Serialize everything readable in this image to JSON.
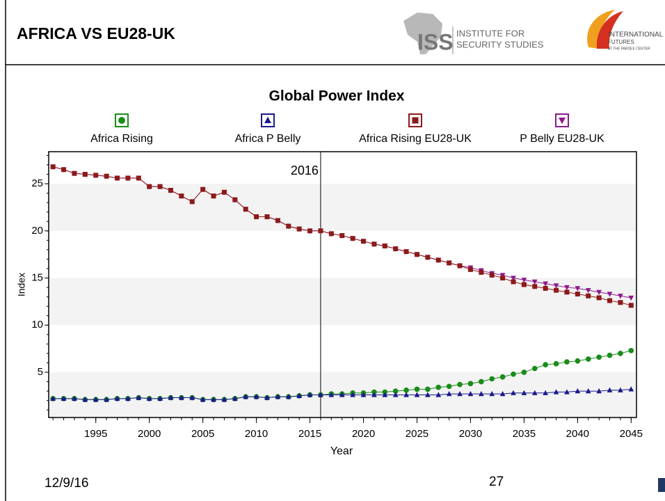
{
  "header": {
    "title": "AFRICA VS EU28-UK"
  },
  "logos": {
    "iss": {
      "abbr": "ISS",
      "line1": "INSTITUTE FOR",
      "line2": "SECURITY STUDIES"
    },
    "ifs": {
      "line1": "INTERNATIONAL",
      "line2": "FUTURES",
      "line3": "AT THE PARDEE CENTER"
    }
  },
  "footer": {
    "date": "12/9/16",
    "page": "27"
  },
  "chart_data": {
    "type": "line",
    "title": "Global Power Index",
    "x_label": "Year",
    "y_label": "Index",
    "x": [
      1991,
      1992,
      1993,
      1994,
      1995,
      1996,
      1997,
      1998,
      1999,
      2000,
      2001,
      2002,
      2003,
      2004,
      2005,
      2006,
      2007,
      2008,
      2009,
      2010,
      2011,
      2012,
      2013,
      2014,
      2015,
      2016,
      2017,
      2018,
      2019,
      2020,
      2021,
      2022,
      2023,
      2024,
      2025,
      2026,
      2027,
      2028,
      2029,
      2030,
      2031,
      2032,
      2033,
      2034,
      2035,
      2036,
      2037,
      2038,
      2039,
      2040,
      2041,
      2042,
      2043,
      2044,
      2045
    ],
    "series": [
      {
        "name": "Africa Rising",
        "color": "#1a8c1a",
        "marker": "circle",
        "values": [
          2.2,
          2.2,
          2.2,
          2.1,
          2.1,
          2.1,
          2.2,
          2.2,
          2.3,
          2.2,
          2.2,
          2.3,
          2.3,
          2.3,
          2.1,
          2.1,
          2.1,
          2.2,
          2.4,
          2.4,
          2.3,
          2.4,
          2.4,
          2.5,
          2.6,
          2.6,
          2.7,
          2.7,
          2.8,
          2.8,
          2.9,
          2.9,
          3.0,
          3.1,
          3.2,
          3.2,
          3.4,
          3.5,
          3.7,
          3.8,
          4.0,
          4.3,
          4.5,
          4.8,
          5.0,
          5.4,
          5.8,
          5.9,
          6.1,
          6.2,
          6.4,
          6.6,
          6.8,
          7.0,
          7.3
        ]
      },
      {
        "name": "Africa P Belly",
        "color": "#1a1a8c",
        "marker": "triangle",
        "values": [
          2.2,
          2.2,
          2.2,
          2.1,
          2.1,
          2.1,
          2.2,
          2.2,
          2.3,
          2.2,
          2.2,
          2.3,
          2.3,
          2.3,
          2.1,
          2.1,
          2.1,
          2.2,
          2.4,
          2.4,
          2.3,
          2.4,
          2.4,
          2.5,
          2.6,
          2.6,
          2.6,
          2.6,
          2.6,
          2.6,
          2.6,
          2.6,
          2.6,
          2.6,
          2.6,
          2.6,
          2.6,
          2.7,
          2.7,
          2.7,
          2.7,
          2.7,
          2.7,
          2.8,
          2.8,
          2.8,
          2.8,
          2.9,
          2.9,
          3.0,
          3.0,
          3.0,
          3.1,
          3.1,
          3.2
        ]
      },
      {
        "name": "Africa Rising EU28-UK",
        "color": "#8c1a1a",
        "marker": "square",
        "values": [
          26.8,
          26.5,
          26.1,
          26.0,
          25.9,
          25.8,
          25.6,
          25.6,
          25.6,
          24.7,
          24.7,
          24.3,
          23.7,
          23.1,
          24.4,
          23.7,
          24.1,
          23.3,
          22.3,
          21.5,
          21.5,
          21.1,
          20.5,
          20.2,
          20.0,
          20.0,
          19.7,
          19.5,
          19.2,
          18.9,
          18.6,
          18.4,
          18.1,
          17.8,
          17.5,
          17.2,
          16.9,
          16.6,
          16.3,
          15.9,
          15.6,
          15.3,
          15.0,
          14.6,
          14.3,
          14.1,
          13.9,
          13.7,
          13.5,
          13.3,
          13.1,
          12.9,
          12.6,
          12.4,
          12.1
        ]
      },
      {
        "name": "P Belly EU28-UK",
        "color": "#8c1a8c",
        "marker": "triangle-down",
        "values": [
          26.8,
          26.5,
          26.1,
          26.0,
          25.9,
          25.8,
          25.6,
          25.6,
          25.6,
          24.7,
          24.7,
          24.3,
          23.7,
          23.1,
          24.4,
          23.7,
          24.1,
          23.3,
          22.3,
          21.5,
          21.5,
          21.1,
          20.5,
          20.2,
          20.0,
          20.0,
          19.7,
          19.5,
          19.2,
          18.9,
          18.6,
          18.4,
          18.1,
          17.8,
          17.5,
          17.2,
          16.9,
          16.6,
          16.3,
          16.1,
          15.8,
          15.5,
          15.3,
          15.0,
          14.8,
          14.6,
          14.4,
          14.2,
          14.0,
          13.9,
          13.7,
          13.5,
          13.3,
          13.1,
          12.9
        ]
      }
    ],
    "xlim": [
      1990.6,
      2045.5
    ],
    "xticks": [
      1995,
      2000,
      2005,
      2010,
      2015,
      2020,
      2025,
      2030,
      2035,
      2040,
      2045
    ],
    "ylim": [
      0.2,
      28.4
    ],
    "yticks": [
      5,
      10,
      15,
      20,
      25
    ],
    "grid": "bands",
    "legend": "top",
    "annotations": [
      {
        "x": 2016,
        "label": "2016"
      }
    ]
  }
}
